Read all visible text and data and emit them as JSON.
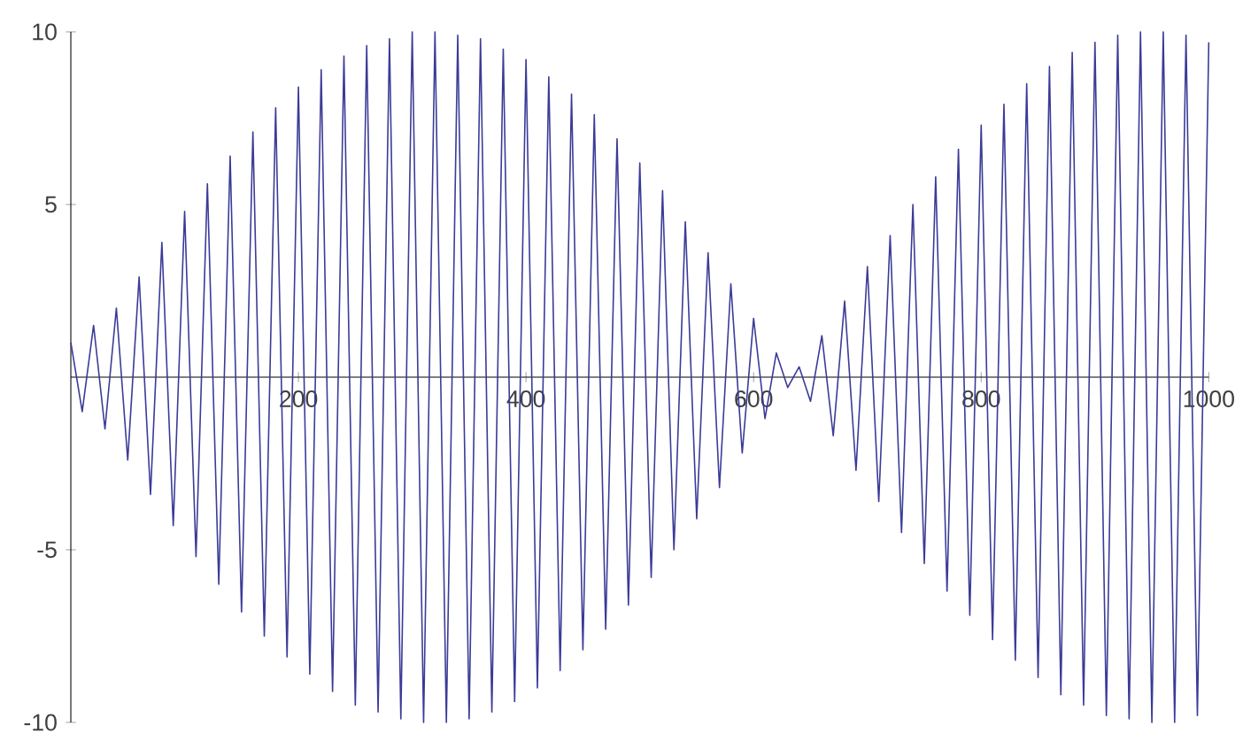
{
  "chart_data": {
    "type": "line",
    "color": "#3b3b98",
    "x": [
      0,
      10,
      20,
      30,
      40,
      50,
      60,
      70,
      80,
      90,
      100,
      110,
      120,
      130,
      140,
      150,
      160,
      170,
      180,
      190,
      200,
      210,
      220,
      230,
      240,
      250,
      260,
      270,
      280,
      290,
      300,
      310,
      320,
      330,
      340,
      350,
      360,
      370,
      380,
      390,
      400,
      410,
      420,
      430,
      440,
      450,
      460,
      470,
      480,
      490,
      500,
      510,
      520,
      530,
      540,
      550,
      560,
      570,
      580,
      590,
      600,
      610,
      620,
      630,
      640,
      650,
      660,
      670,
      680,
      690,
      700,
      710,
      720,
      730,
      740,
      750,
      760,
      770,
      780,
      790,
      800,
      810,
      820,
      830,
      840,
      850,
      860,
      870,
      880,
      890,
      900,
      910,
      920,
      930,
      940,
      950,
      960,
      970,
      980,
      990,
      1000
    ],
    "values": [
      1.0,
      -1.0,
      1.5,
      -1.5,
      2.0,
      -2.4,
      2.9,
      -3.4,
      3.9,
      -4.3,
      4.8,
      -5.2,
      5.6,
      -6.0,
      6.4,
      -6.8,
      7.1,
      -7.5,
      7.8,
      -8.1,
      8.4,
      -8.6,
      8.9,
      -9.1,
      9.3,
      -9.5,
      9.6,
      -9.7,
      9.8,
      -9.9,
      10.0,
      -10.0,
      10.0,
      -10.0,
      9.9,
      -9.9,
      9.8,
      -9.7,
      9.5,
      -9.4,
      9.2,
      -9.0,
      8.7,
      -8.5,
      8.2,
      -7.9,
      7.6,
      -7.3,
      6.9,
      -6.6,
      6.2,
      -5.8,
      5.4,
      -5.0,
      4.5,
      -4.1,
      3.6,
      -3.2,
      2.7,
      -2.2,
      1.7,
      -1.2,
      0.7,
      -0.3,
      0.3,
      -0.7,
      1.2,
      -1.7,
      2.2,
      -2.7,
      3.2,
      -3.6,
      4.1,
      -4.5,
      5.0,
      -5.4,
      5.8,
      -6.2,
      6.6,
      -6.9,
      7.3,
      -7.6,
      7.9,
      -8.2,
      8.5,
      -8.7,
      9.0,
      -9.2,
      9.4,
      -9.5,
      9.7,
      -9.8,
      9.9,
      -9.9,
      10.0,
      -10.0,
      10.0,
      -10.0,
      9.9,
      -9.8,
      9.7
    ],
    "xlim": [
      0,
      1000
    ],
    "ylim": [
      -10,
      10
    ],
    "xticks": [
      200,
      400,
      600,
      800,
      1000
    ],
    "yticks": [
      -10,
      -5,
      5,
      10
    ]
  }
}
